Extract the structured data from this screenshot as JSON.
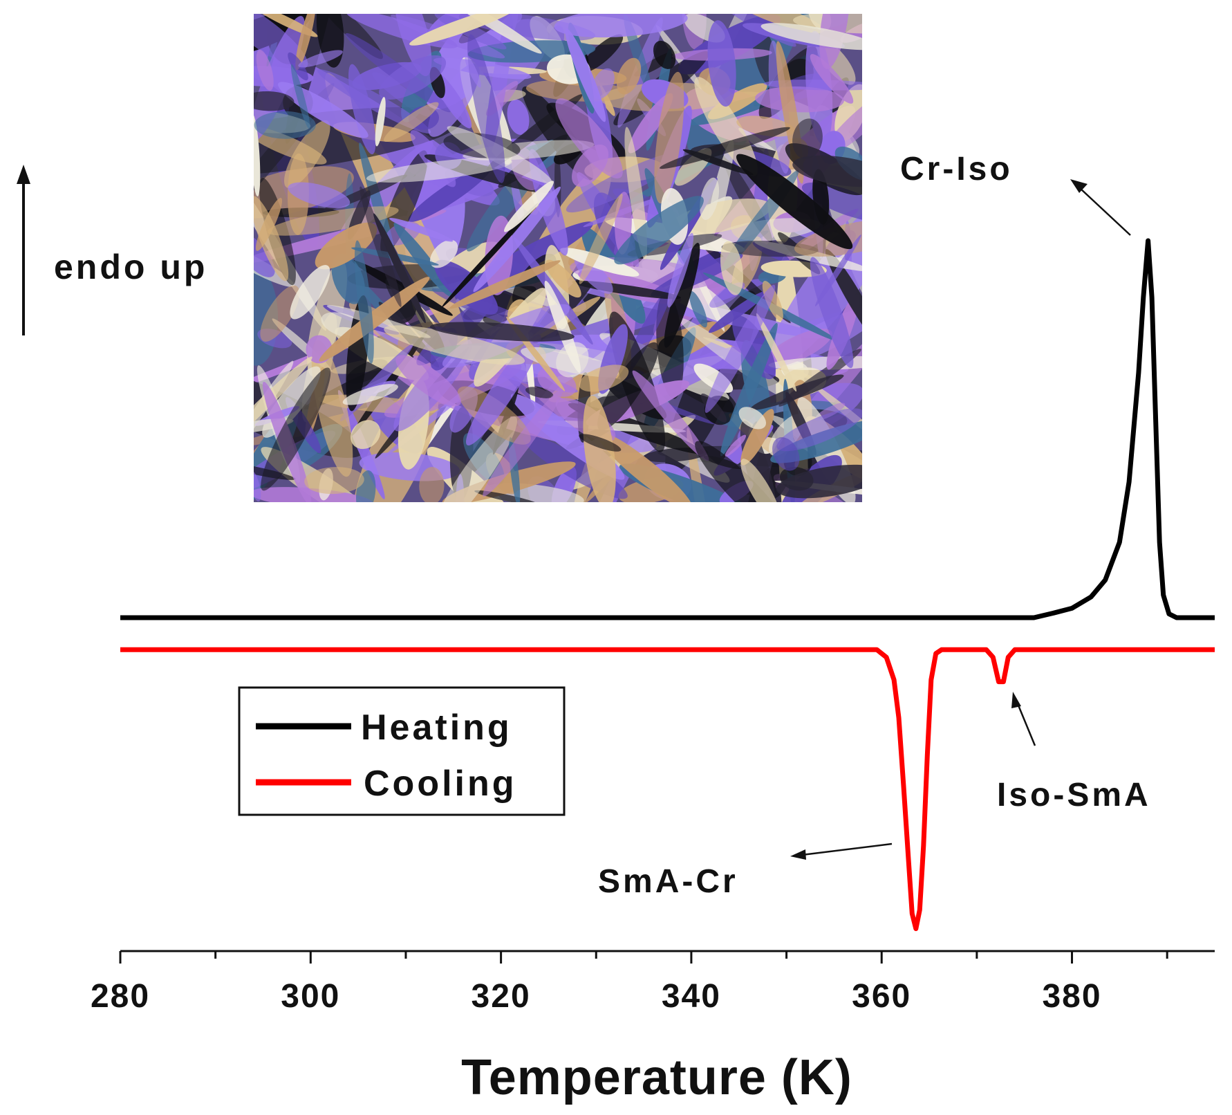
{
  "chart_data": {
    "type": "line",
    "title": "",
    "xlabel": "Temperature (K)",
    "ylabel": "",
    "xlim": [
      280,
      395
    ],
    "x_ticks": [
      280,
      300,
      320,
      340,
      360,
      380
    ],
    "minor_tick_step": 10,
    "y_axis_label_text": "endo up",
    "grid": false,
    "legend": {
      "placement": "lower-left",
      "entries": [
        "Heating",
        "Cooling"
      ]
    },
    "series": [
      {
        "name": "Heating",
        "color": "#000000",
        "baseline_offset": 0.0,
        "points": [
          [
            280,
            0.0
          ],
          [
            370,
            0.0
          ],
          [
            376,
            0.0
          ],
          [
            378,
            0.012
          ],
          [
            380,
            0.025
          ],
          [
            382,
            0.055
          ],
          [
            383.5,
            0.1
          ],
          [
            385,
            0.2
          ],
          [
            386,
            0.36
          ],
          [
            387,
            0.65
          ],
          [
            387.5,
            0.85
          ],
          [
            388,
            1.0
          ],
          [
            388.4,
            0.85
          ],
          [
            388.8,
            0.52
          ],
          [
            389.2,
            0.2
          ],
          [
            389.6,
            0.06
          ],
          [
            390.2,
            0.01
          ],
          [
            391,
            0.0
          ],
          [
            395,
            0.0
          ]
        ]
      },
      {
        "name": "Cooling",
        "color": "#ff0000",
        "baseline_offset": -0.085,
        "points": [
          [
            280,
            0.0
          ],
          [
            359.5,
            0.0
          ],
          [
            360.5,
            -0.02
          ],
          [
            361.3,
            -0.08
          ],
          [
            361.8,
            -0.18
          ],
          [
            362.3,
            -0.36
          ],
          [
            362.8,
            -0.55
          ],
          [
            363.2,
            -0.7
          ],
          [
            363.6,
            -0.74
          ],
          [
            364.0,
            -0.69
          ],
          [
            364.4,
            -0.52
          ],
          [
            364.8,
            -0.28
          ],
          [
            365.2,
            -0.08
          ],
          [
            365.7,
            -0.01
          ],
          [
            366.3,
            0.0
          ],
          [
            371,
            0.0
          ],
          [
            371.7,
            -0.02
          ],
          [
            372.3,
            -0.085
          ],
          [
            372.8,
            -0.085
          ],
          [
            373.3,
            -0.02
          ],
          [
            374,
            0.0
          ],
          [
            395,
            0.0
          ]
        ]
      }
    ],
    "annotations": [
      {
        "text": "Cr-Iso",
        "target_x": 387.8,
        "series": "Heating"
      },
      {
        "text": "Iso-SmA",
        "target_x": 372.5,
        "series": "Cooling"
      },
      {
        "text": "SmA-Cr",
        "target_x": 363.6,
        "series": "Cooling"
      }
    ],
    "inset": {
      "description_icon": "polarized-micrograph-inset"
    }
  }
}
